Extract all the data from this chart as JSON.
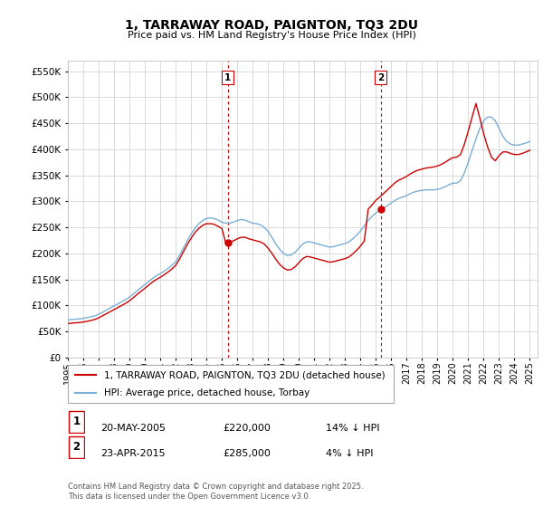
{
  "title": "1, TARRAWAY ROAD, PAIGNTON, TQ3 2DU",
  "subtitle": "Price paid vs. HM Land Registry's House Price Index (HPI)",
  "ylim": [
    0,
    570000
  ],
  "xlim_start": 1995.0,
  "xlim_end": 2025.5,
  "legend_line1": "1, TARRAWAY ROAD, PAIGNTON, TQ3 2DU (detached house)",
  "legend_line2": "HPI: Average price, detached house, Torbay",
  "purchase1_label": "1",
  "purchase1_date": "20-MAY-2005",
  "purchase1_price": "£220,000",
  "purchase1_hpi": "14% ↓ HPI",
  "purchase2_label": "2",
  "purchase2_date": "23-APR-2015",
  "purchase2_price": "£285,000",
  "purchase2_hpi": "4% ↓ HPI",
  "vline1_x": 2005.38,
  "vline2_x": 2015.31,
  "purchase1_point_x": 2005.38,
  "purchase1_point_y": 220000,
  "purchase2_point_x": 2015.31,
  "purchase2_point_y": 285000,
  "footer": "Contains HM Land Registry data © Crown copyright and database right 2025.\nThis data is licensed under the Open Government Licence v3.0.",
  "line_color_red": "#cc0000",
  "line_color_blue": "#7aaed6",
  "vline_color": "#cc0000",
  "grid_color": "#cccccc",
  "bg_color": "#ffffff",
  "hpi_data_x": [
    1995.0,
    1995.25,
    1995.5,
    1995.75,
    1996.0,
    1996.25,
    1996.5,
    1996.75,
    1997.0,
    1997.25,
    1997.5,
    1997.75,
    1998.0,
    1998.25,
    1998.5,
    1998.75,
    1999.0,
    1999.25,
    1999.5,
    1999.75,
    2000.0,
    2000.25,
    2000.5,
    2000.75,
    2001.0,
    2001.25,
    2001.5,
    2001.75,
    2002.0,
    2002.25,
    2002.5,
    2002.75,
    2003.0,
    2003.25,
    2003.5,
    2003.75,
    2004.0,
    2004.25,
    2004.5,
    2004.75,
    2005.0,
    2005.25,
    2005.5,
    2005.75,
    2006.0,
    2006.25,
    2006.5,
    2006.75,
    2007.0,
    2007.25,
    2007.5,
    2007.75,
    2008.0,
    2008.25,
    2008.5,
    2008.75,
    2009.0,
    2009.25,
    2009.5,
    2009.75,
    2010.0,
    2010.25,
    2010.5,
    2010.75,
    2011.0,
    2011.25,
    2011.5,
    2011.75,
    2012.0,
    2012.25,
    2012.5,
    2012.75,
    2013.0,
    2013.25,
    2013.5,
    2013.75,
    2014.0,
    2014.25,
    2014.5,
    2014.75,
    2015.0,
    2015.25,
    2015.5,
    2015.75,
    2016.0,
    2016.25,
    2016.5,
    2016.75,
    2017.0,
    2017.25,
    2017.5,
    2017.75,
    2018.0,
    2018.25,
    2018.5,
    2018.75,
    2019.0,
    2019.25,
    2019.5,
    2019.75,
    2020.0,
    2020.25,
    2020.5,
    2020.75,
    2021.0,
    2021.25,
    2021.5,
    2021.75,
    2022.0,
    2022.25,
    2022.5,
    2022.75,
    2023.0,
    2023.25,
    2023.5,
    2023.75,
    2024.0,
    2024.25,
    2024.5,
    2024.75,
    2025.0
  ],
  "hpi_data_y": [
    72000,
    73000,
    73500,
    74000,
    75000,
    76500,
    78000,
    80000,
    83000,
    87000,
    91000,
    95000,
    99000,
    103000,
    107000,
    111000,
    116000,
    122000,
    128000,
    134000,
    140000,
    146000,
    152000,
    157000,
    161000,
    166000,
    171000,
    177000,
    184000,
    196000,
    210000,
    224000,
    237000,
    248000,
    257000,
    263000,
    267000,
    268000,
    267000,
    264000,
    260000,
    258000,
    258000,
    260000,
    263000,
    265000,
    264000,
    261000,
    258000,
    257000,
    255000,
    250000,
    242000,
    231000,
    218000,
    208000,
    200000,
    196000,
    197000,
    202000,
    210000,
    218000,
    222000,
    222000,
    220000,
    218000,
    216000,
    214000,
    212000,
    213000,
    215000,
    217000,
    219000,
    222000,
    228000,
    235000,
    243000,
    253000,
    263000,
    271000,
    278000,
    282000,
    287000,
    292000,
    297000,
    302000,
    306000,
    308000,
    311000,
    315000,
    318000,
    320000,
    321000,
    322000,
    322000,
    322000,
    323000,
    325000,
    328000,
    332000,
    335000,
    335000,
    340000,
    355000,
    375000,
    398000,
    420000,
    440000,
    455000,
    462000,
    462000,
    455000,
    440000,
    425000,
    415000,
    410000,
    408000,
    408000,
    410000,
    412000,
    415000
  ],
  "price_data_x": [
    1995.0,
    1995.25,
    1995.5,
    1995.75,
    1996.0,
    1996.25,
    1996.5,
    1996.75,
    1997.0,
    1997.25,
    1997.5,
    1997.75,
    1998.0,
    1998.25,
    1998.5,
    1998.75,
    1999.0,
    1999.25,
    1999.5,
    1999.75,
    2000.0,
    2000.25,
    2000.5,
    2000.75,
    2001.0,
    2001.25,
    2001.5,
    2001.75,
    2002.0,
    2002.25,
    2002.5,
    2002.75,
    2003.0,
    2003.25,
    2003.5,
    2003.75,
    2004.0,
    2004.25,
    2004.5,
    2004.75,
    2005.0,
    2005.25,
    2005.5,
    2005.75,
    2006.0,
    2006.25,
    2006.5,
    2006.75,
    2007.0,
    2007.25,
    2007.5,
    2007.75,
    2008.0,
    2008.25,
    2008.5,
    2008.75,
    2009.0,
    2009.25,
    2009.5,
    2009.75,
    2010.0,
    2010.25,
    2010.5,
    2010.75,
    2011.0,
    2011.25,
    2011.5,
    2011.75,
    2012.0,
    2012.25,
    2012.5,
    2012.75,
    2013.0,
    2013.25,
    2013.5,
    2013.75,
    2014.0,
    2014.25,
    2014.5,
    2014.75,
    2015.0,
    2015.25,
    2015.5,
    2015.75,
    2016.0,
    2016.25,
    2016.5,
    2016.75,
    2017.0,
    2017.25,
    2017.5,
    2017.75,
    2018.0,
    2018.25,
    2018.5,
    2018.75,
    2019.0,
    2019.25,
    2019.5,
    2019.75,
    2020.0,
    2020.25,
    2020.5,
    2020.75,
    2021.0,
    2021.25,
    2021.5,
    2021.75,
    2022.0,
    2022.25,
    2022.5,
    2022.75,
    2023.0,
    2023.25,
    2023.5,
    2023.75,
    2024.0,
    2024.25,
    2024.5,
    2024.75,
    2025.0
  ],
  "price_data_y": [
    65000,
    66000,
    66500,
    67000,
    68000,
    69500,
    71000,
    73000,
    76000,
    80000,
    84000,
    88000,
    92000,
    96000,
    100000,
    104000,
    109000,
    115000,
    121000,
    127000,
    133000,
    139000,
    145000,
    150000,
    154000,
    159000,
    164000,
    170000,
    177000,
    189000,
    203000,
    217000,
    229000,
    240000,
    248000,
    254000,
    257000,
    257000,
    256000,
    252000,
    248000,
    220000,
    222000,
    224000,
    228000,
    231000,
    231000,
    228000,
    226000,
    224000,
    222000,
    218000,
    210000,
    200000,
    189000,
    179000,
    172000,
    168000,
    169000,
    174000,
    182000,
    190000,
    194000,
    193000,
    191000,
    189000,
    187000,
    185000,
    183000,
    184000,
    186000,
    188000,
    190000,
    193000,
    199000,
    206000,
    214000,
    224000,
    285000,
    293000,
    302000,
    308000,
    315000,
    322000,
    329000,
    336000,
    341000,
    344000,
    348000,
    353000,
    357000,
    360000,
    362000,
    364000,
    365000,
    366000,
    368000,
    371000,
    375000,
    380000,
    384000,
    385000,
    390000,
    410000,
    435000,
    462000,
    488000,
    460000,
    430000,
    405000,
    385000,
    378000,
    388000,
    395000,
    395000,
    392000,
    390000,
    390000,
    392000,
    395000,
    398000
  ]
}
